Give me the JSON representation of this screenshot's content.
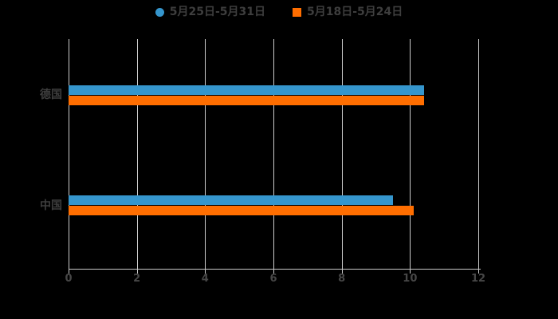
{
  "chart_data": {
    "type": "bar",
    "orientation": "horizontal",
    "title": "",
    "xlabel": "",
    "ylabel": "",
    "categories": [
      "德国",
      "中国"
    ],
    "series": [
      {
        "name": "5月25日-5月31日",
        "color": "#3596cd",
        "marker": "circle",
        "values": [
          10.4,
          9.5
        ]
      },
      {
        "name": "5月18日-5月24日",
        "color": "#ff6e00",
        "marker": "square",
        "values": [
          10.4,
          10.1
        ]
      }
    ],
    "xlim": [
      0,
      12
    ],
    "xticks": [
      0,
      2,
      4,
      6,
      8,
      10,
      12
    ],
    "grid": "vertical-only",
    "legend_position": "top-center"
  },
  "colors": {
    "background": "#000000",
    "gridline": "#cccccc",
    "axis_line": "#c9c9c9",
    "label_text": "#3e3e3e",
    "tick_text": "#474747"
  }
}
